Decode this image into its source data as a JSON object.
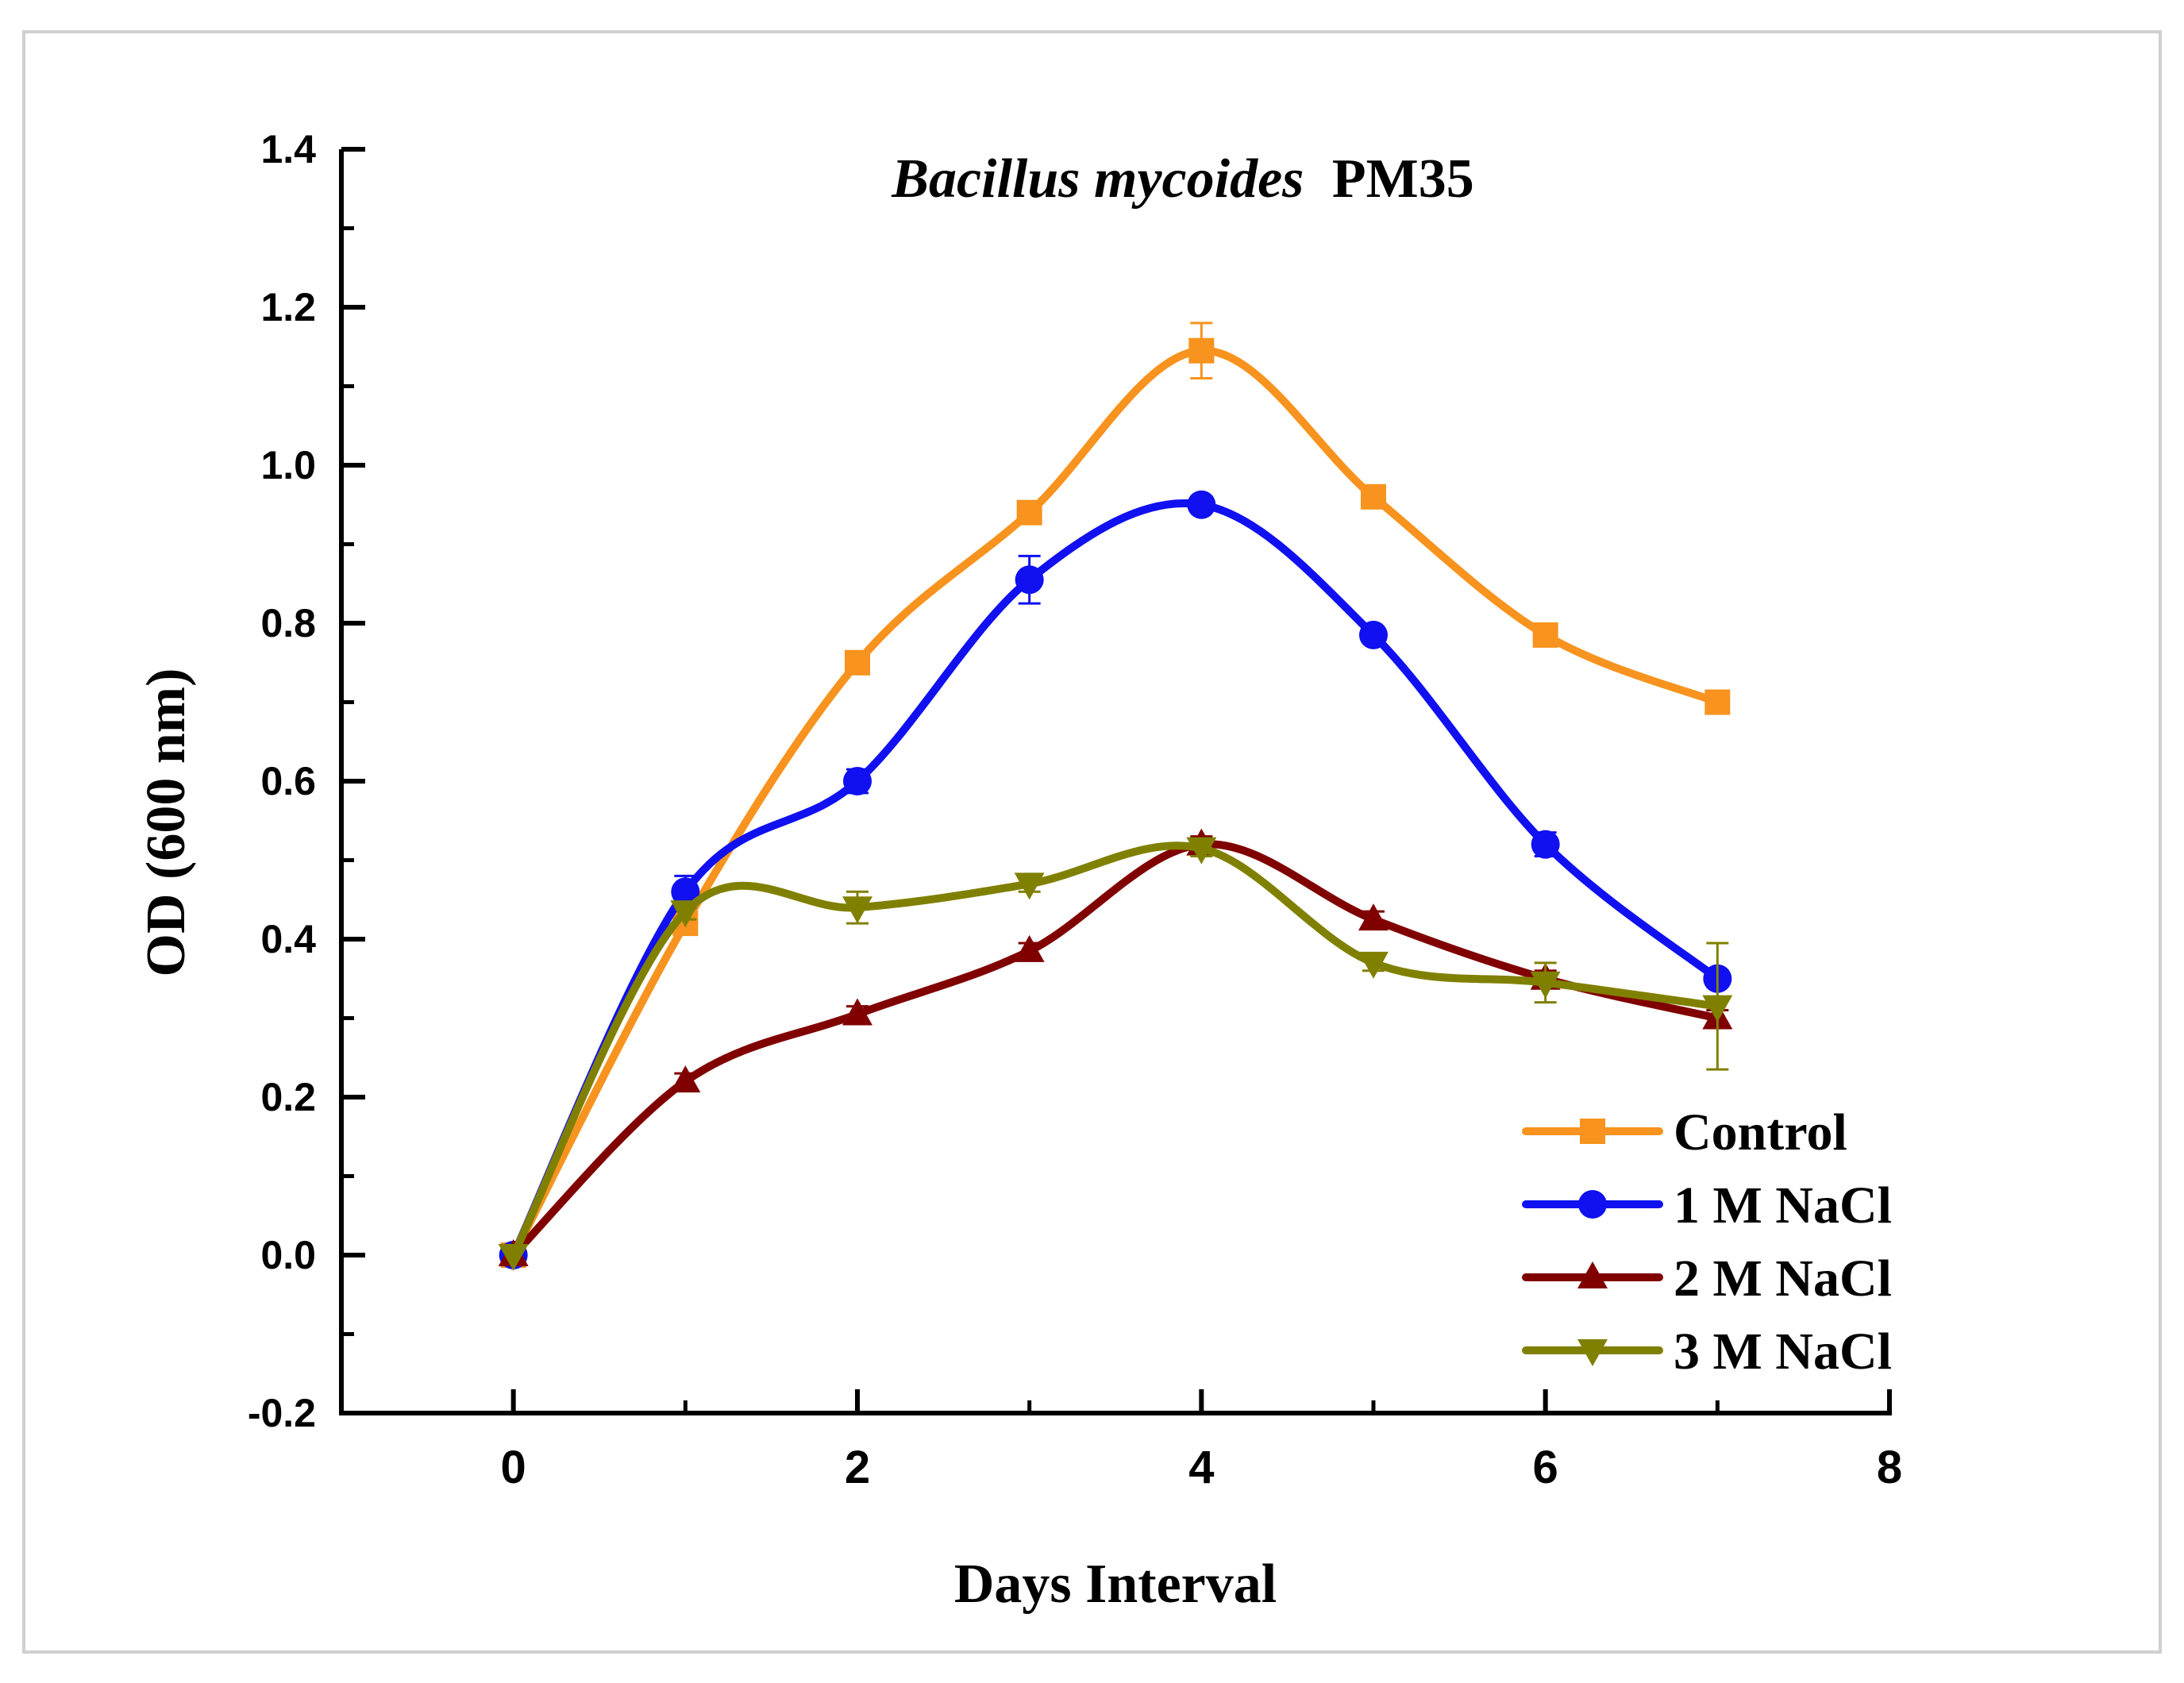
{
  "chart_data": {
    "type": "line",
    "title_italic": "Bacillus mycoides",
    "title_rest": "PM35",
    "xlabel": "Days Interval",
    "ylabel": "OD (600 nm)",
    "xlim": [
      -1,
      8
    ],
    "ylim": [
      -0.2,
      1.4
    ],
    "xticks": [
      0,
      2,
      4,
      6,
      8
    ],
    "xtick_labels": [
      "0",
      "2",
      "4",
      "6",
      "8"
    ],
    "yticks": [
      -0.2,
      0.0,
      0.2,
      0.4,
      0.6,
      0.8,
      1.0,
      1.2,
      1.4
    ],
    "ytick_labels": [
      "-0.2",
      "0.0",
      "0.2",
      "0.4",
      "0.6",
      "0.8",
      "1.0",
      "1.2",
      "1.4"
    ],
    "x": [
      0,
      1,
      2,
      3,
      4,
      5,
      6,
      7
    ],
    "legend_position": "bottom-right",
    "series": [
      {
        "name": "Control",
        "color": "#F7931E",
        "marker": "square",
        "values": [
          0.0,
          0.42,
          0.75,
          0.94,
          1.145,
          0.96,
          0.785,
          0.7
        ],
        "errors": [
          0.0,
          0.01,
          0.01,
          0.01,
          0.035,
          0.01,
          0.01,
          0.01
        ]
      },
      {
        "name": "1 M NaCl",
        "color": "#1010F0",
        "marker": "circle",
        "values": [
          0.0,
          0.46,
          0.6,
          0.855,
          0.95,
          0.785,
          0.52,
          0.35
        ],
        "errors": [
          0.0,
          0.02,
          0.015,
          0.03,
          0.01,
          0.01,
          0.015,
          0.01
        ]
      },
      {
        "name": "2 M NaCl",
        "color": "#800000",
        "marker": "triangle-up",
        "values": [
          0.0,
          0.22,
          0.305,
          0.385,
          0.52,
          0.425,
          0.35,
          0.3
        ],
        "errors": [
          0.0,
          0.01,
          0.01,
          0.01,
          0.01,
          0.01,
          0.01,
          0.01
        ]
      },
      {
        "name": "3 M NaCl",
        "color": "#808000",
        "marker": "triangle-down",
        "values": [
          0.0,
          0.435,
          0.44,
          0.47,
          0.515,
          0.37,
          0.345,
          0.315
        ],
        "errors": [
          0.0,
          0.01,
          0.02,
          0.01,
          0.01,
          0.01,
          0.025,
          0.08
        ]
      }
    ]
  }
}
